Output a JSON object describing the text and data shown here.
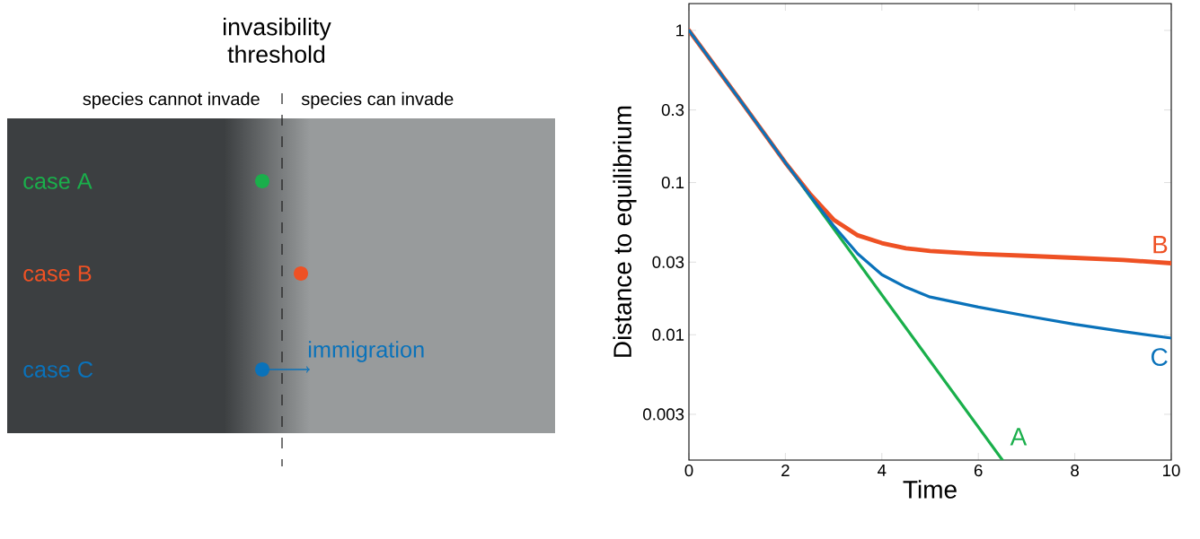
{
  "chart_data": [
    {
      "type": "other",
      "title": "invasibility threshold",
      "annotations": [
        "species cannot invade",
        "species can invade",
        "case A",
        "case B",
        "case C",
        "immigration"
      ]
    },
    {
      "type": "line",
      "xlabel": "Time",
      "ylabel": "Distance to equilibrium",
      "log": "y",
      "xlim": [
        0,
        10
      ],
      "ylim": [
        0.0015,
        1.5
      ],
      "xticks": [
        0,
        2,
        4,
        6,
        8,
        10
      ],
      "yticks": [
        0.003,
        0.01,
        0.03,
        0.1,
        0.3,
        1
      ],
      "series": [
        {
          "name": "A",
          "color": "#1aaf4b",
          "x": [
            0,
            6.5
          ],
          "values": [
            1,
            0.0015
          ]
        },
        {
          "name": "B",
          "color": "#ee5124",
          "x": [
            0,
            1,
            2,
            2.5,
            3,
            3.5,
            4,
            4.5,
            5,
            6,
            7,
            8,
            9,
            10
          ],
          "values": [
            1,
            0.37,
            0.135,
            0.085,
            0.057,
            0.045,
            0.04,
            0.037,
            0.0355,
            0.034,
            0.033,
            0.032,
            0.031,
            0.0295
          ]
        },
        {
          "name": "C",
          "color": "#0a72ba",
          "x": [
            0,
            1,
            2,
            2.5,
            3,
            3.5,
            4,
            4.5,
            5,
            6,
            7,
            8,
            9,
            10
          ],
          "values": [
            1,
            0.37,
            0.135,
            0.083,
            0.052,
            0.034,
            0.0248,
            0.0205,
            0.0177,
            0.0152,
            0.0133,
            0.0117,
            0.0105,
            0.0095
          ]
        }
      ]
    }
  ]
}
